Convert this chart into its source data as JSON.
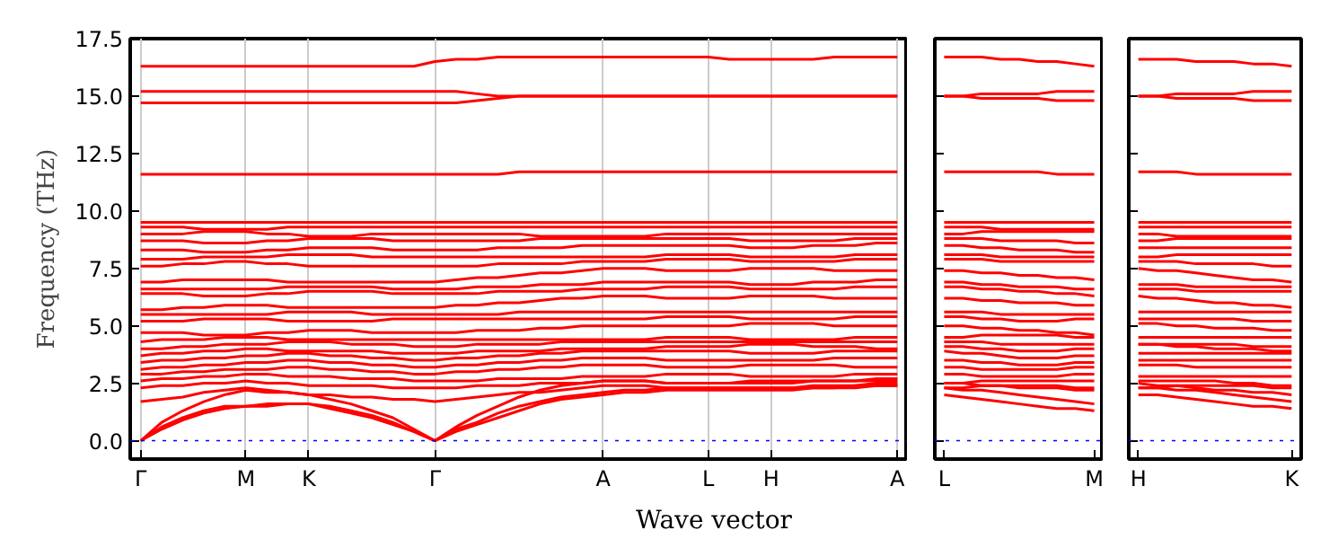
{
  "chart_data": [
    {
      "type": "line",
      "ylabel": "Frequency (THz)",
      "xlabel": "Wave vector",
      "ylim": [
        -0.8,
        17.5
      ],
      "categories": [
        "Γ",
        null,
        null,
        null,
        null,
        "M",
        null,
        null,
        "K",
        null,
        null,
        null,
        null,
        null,
        "Γ",
        null,
        null,
        null,
        null,
        null,
        null,
        null,
        "A",
        null,
        null,
        null,
        null,
        "L",
        null,
        null,
        "H",
        null,
        null,
        null,
        null,
        null,
        "A"
      ],
      "yticks": [
        {
          "value": 0,
          "label": "0.0"
        },
        {
          "value": 2.5,
          "label": "2.5"
        },
        {
          "value": 5,
          "label": "5.0"
        },
        {
          "value": 7.5,
          "label": "7.5"
        },
        {
          "value": 10,
          "label": "10.0"
        },
        {
          "value": 12.5,
          "label": "12.5"
        },
        {
          "value": 15,
          "label": "15.0"
        },
        {
          "value": 17.5,
          "label": "17.5"
        }
      ],
      "grid": "x",
      "ref_lines": [
        {
          "axis": "y",
          "value": 0,
          "color": "#0000ff",
          "line_style": "dotted"
        }
      ],
      "series": [
        {
          "color": "#ff0000",
          "values": [
            0,
            0.5,
            0.9,
            1.2,
            1.4,
            1.5,
            1.5,
            1.6,
            1.6,
            1.4,
            1.2,
            1.0,
            0.7,
            0.4,
            0,
            0.4,
            0.7,
            1.0,
            1.3,
            1.6,
            1.8,
            1.9,
            2.0,
            2.1,
            2.1,
            2.2,
            2.2,
            2.2,
            2.2,
            2.2,
            2.2,
            2.2,
            2.3,
            2.3,
            2.3,
            2.4,
            2.4
          ]
        },
        {
          "color": "#ff0000",
          "values": [
            0,
            0.6,
            1.0,
            1.3,
            1.5,
            1.5,
            1.6,
            1.6,
            1.6,
            1.5,
            1.3,
            1.1,
            0.8,
            0.4,
            0,
            0.5,
            0.8,
            1.2,
            1.5,
            1.7,
            1.9,
            2.0,
            2.1,
            2.2,
            2.2,
            2.3,
            2.3,
            2.3,
            2.3,
            2.3,
            2.3,
            2.3,
            2.4,
            2.4,
            2.4,
            2.5,
            2.5
          ]
        },
        {
          "color": "#ff0000",
          "values": [
            0,
            0.8,
            1.3,
            1.7,
            2.0,
            2.2,
            2.1,
            2.1,
            2.0,
            1.8,
            1.6,
            1.3,
            1.0,
            0.5,
            0,
            0.6,
            1.1,
            1.5,
            1.9,
            2.2,
            2.4,
            2.5,
            2.6,
            2.6,
            2.6,
            2.5,
            2.5,
            2.5,
            2.5,
            2.5,
            2.5,
            2.5,
            2.6,
            2.6,
            2.6,
            2.7,
            2.7
          ]
        },
        {
          "color": "#ff0000",
          "values": [
            1.7,
            1.8,
            1.9,
            2.1,
            2.2,
            2.3,
            2.2,
            2.1,
            2.0,
            2.0,
            1.9,
            1.9,
            1.8,
            1.8,
            1.7,
            1.8,
            1.9,
            2.0,
            2.1,
            2.1,
            2.2,
            2.3,
            2.4,
            2.4,
            2.4,
            2.3,
            2.3,
            2.3,
            2.3,
            2.3,
            2.3,
            2.3,
            2.3,
            2.3,
            2.4,
            2.4,
            2.4
          ]
        },
        {
          "color": "#ff0000",
          "values": [
            2.3,
            2.4,
            2.4,
            2.5,
            2.5,
            2.6,
            2.5,
            2.5,
            2.4,
            2.4,
            2.4,
            2.4,
            2.3,
            2.3,
            2.3,
            2.3,
            2.4,
            2.4,
            2.4,
            2.5,
            2.5,
            2.5,
            2.6,
            2.6,
            2.6,
            2.5,
            2.5,
            2.5,
            2.5,
            2.6,
            2.6,
            2.6,
            2.6,
            2.6,
            2.6,
            2.6,
            2.6
          ]
        },
        {
          "color": "#ff0000",
          "values": [
            2.6,
            2.7,
            2.7,
            2.8,
            2.8,
            2.9,
            2.9,
            2.8,
            2.8,
            2.8,
            2.7,
            2.7,
            2.7,
            2.6,
            2.6,
            2.6,
            2.6,
            2.7,
            2.7,
            2.7,
            2.7,
            2.8,
            2.8,
            2.8,
            2.8,
            2.9,
            2.9,
            2.9,
            2.9,
            2.8,
            2.8,
            2.8,
            2.8,
            2.8,
            2.9,
            2.9,
            2.9
          ]
        },
        {
          "color": "#ff0000",
          "values": [
            2.9,
            2.9,
            3.0,
            3.0,
            3.1,
            3.1,
            3.1,
            3.2,
            3.2,
            3.1,
            3.1,
            3.0,
            3.0,
            2.9,
            2.9,
            3.0,
            3.0,
            3.1,
            3.1,
            3.2,
            3.2,
            3.3,
            3.3,
            3.3,
            3.3,
            3.2,
            3.2,
            3.2,
            3.2,
            3.3,
            3.3,
            3.3,
            3.3,
            3.3,
            3.2,
            3.2,
            3.2
          ]
        },
        {
          "color": "#ff0000",
          "values": [
            3.1,
            3.2,
            3.2,
            3.3,
            3.3,
            3.4,
            3.4,
            3.5,
            3.5,
            3.4,
            3.4,
            3.3,
            3.3,
            3.2,
            3.2,
            3.3,
            3.3,
            3.4,
            3.4,
            3.5,
            3.5,
            3.6,
            3.6,
            3.6,
            3.6,
            3.5,
            3.5,
            3.5,
            3.5,
            3.5,
            3.5,
            3.5,
            3.5,
            3.6,
            3.6,
            3.6,
            3.6
          ]
        },
        {
          "color": "#ff0000",
          "values": [
            3.4,
            3.5,
            3.5,
            3.6,
            3.6,
            3.7,
            3.7,
            3.8,
            3.8,
            3.7,
            3.7,
            3.6,
            3.6,
            3.5,
            3.5,
            3.6,
            3.6,
            3.7,
            3.7,
            3.8,
            3.8,
            3.9,
            3.9,
            3.9,
            3.9,
            3.9,
            3.9,
            3.9,
            3.9,
            3.8,
            3.8,
            3.8,
            3.8,
            3.9,
            3.9,
            3.9,
            3.9
          ]
        },
        {
          "color": "#ff0000",
          "values": [
            3.7,
            3.8,
            3.8,
            3.9,
            3.9,
            4.0,
            4.0,
            3.9,
            3.9,
            3.9,
            3.9,
            3.9,
            3.8,
            3.8,
            3.8,
            3.8,
            3.9,
            3.9,
            3.9,
            3.9,
            4.0,
            4.0,
            4.0,
            4.0,
            4.0,
            4.1,
            4.1,
            4.1,
            4.1,
            4.2,
            4.2,
            4.2,
            4.1,
            4.1,
            4.1,
            4.0,
            4.0
          ]
        },
        {
          "color": "#ff0000",
          "values": [
            4.0,
            4.0,
            4.1,
            4.1,
            4.2,
            4.2,
            4.2,
            4.3,
            4.3,
            4.3,
            4.2,
            4.2,
            4.2,
            4.1,
            4.1,
            4.1,
            4.2,
            4.2,
            4.2,
            4.2,
            4.3,
            4.3,
            4.3,
            4.3,
            4.3,
            4.3,
            4.3,
            4.3,
            4.3,
            4.3,
            4.3,
            4.3,
            4.3,
            4.3,
            4.3,
            4.3,
            4.3
          ]
        },
        {
          "color": "#ff0000",
          "values": [
            4.3,
            4.4,
            4.4,
            4.4,
            4.5,
            4.5,
            4.5,
            4.4,
            4.4,
            4.4,
            4.4,
            4.4,
            4.4,
            4.4,
            4.4,
            4.4,
            4.4,
            4.4,
            4.4,
            4.4,
            4.4,
            4.4,
            4.4,
            4.4,
            4.4,
            4.5,
            4.5,
            4.5,
            4.5,
            4.4,
            4.4,
            4.4,
            4.4,
            4.4,
            4.5,
            4.5,
            4.5
          ]
        },
        {
          "color": "#ff0000",
          "values": [
            4.7,
            4.7,
            4.7,
            4.6,
            4.6,
            4.6,
            4.7,
            4.7,
            4.8,
            4.8,
            4.8,
            4.7,
            4.7,
            4.7,
            4.7,
            4.7,
            4.8,
            4.8,
            4.8,
            4.9,
            4.9,
            5.0,
            5.0,
            5.0,
            5.0,
            5.0,
            5.0,
            5.0,
            5.0,
            5.1,
            5.1,
            5.1,
            5.1,
            5.0,
            5.0,
            5.0,
            5.0
          ]
        },
        {
          "color": "#ff0000",
          "values": [
            5.2,
            5.2,
            5.2,
            5.3,
            5.3,
            5.3,
            5.3,
            5.2,
            5.2,
            5.2,
            5.2,
            5.2,
            5.3,
            5.3,
            5.3,
            5.3,
            5.3,
            5.3,
            5.3,
            5.3,
            5.3,
            5.3,
            5.3,
            5.3,
            5.3,
            5.4,
            5.4,
            5.4,
            5.4,
            5.3,
            5.3,
            5.3,
            5.3,
            5.3,
            5.4,
            5.4,
            5.4
          ]
        },
        {
          "color": "#ff0000",
          "values": [
            5.5,
            5.5,
            5.5,
            5.5,
            5.5,
            5.5,
            5.5,
            5.6,
            5.6,
            5.6,
            5.6,
            5.5,
            5.5,
            5.5,
            5.5,
            5.5,
            5.5,
            5.5,
            5.6,
            5.6,
            5.6,
            5.6,
            5.6,
            5.6,
            5.6,
            5.6,
            5.6,
            5.6,
            5.6,
            5.6,
            5.6,
            5.6,
            5.6,
            5.6,
            5.6,
            5.6,
            5.6
          ]
        },
        {
          "color": "#ff0000",
          "values": [
            5.7,
            5.7,
            5.8,
            5.8,
            5.9,
            5.9,
            5.9,
            5.8,
            5.8,
            5.8,
            5.8,
            5.8,
            5.8,
            5.8,
            5.8,
            5.9,
            5.9,
            6.0,
            6.0,
            6.1,
            6.2,
            6.2,
            6.3,
            6.3,
            6.3,
            6.2,
            6.2,
            6.2,
            6.2,
            6.3,
            6.3,
            6.3,
            6.3,
            6.2,
            6.2,
            6.2,
            6.2
          ]
        },
        {
          "color": "#ff0000",
          "values": [
            6.4,
            6.4,
            6.4,
            6.3,
            6.3,
            6.3,
            6.4,
            6.4,
            6.5,
            6.5,
            6.5,
            6.5,
            6.4,
            6.4,
            6.4,
            6.4,
            6.4,
            6.5,
            6.5,
            6.5,
            6.5,
            6.6,
            6.6,
            6.6,
            6.6,
            6.7,
            6.7,
            6.7,
            6.7,
            6.6,
            6.6,
            6.6,
            6.6,
            6.6,
            6.7,
            6.7,
            6.7
          ]
        },
        {
          "color": "#ff0000",
          "values": [
            6.6,
            6.6,
            6.6,
            6.6,
            6.6,
            6.6,
            6.6,
            6.7,
            6.7,
            6.7,
            6.7,
            6.7,
            6.6,
            6.6,
            6.6,
            6.6,
            6.7,
            6.7,
            6.7,
            6.8,
            6.8,
            6.8,
            6.9,
            6.9,
            6.9,
            6.9,
            6.9,
            6.9,
            6.9,
            6.8,
            6.8,
            6.8,
            6.9,
            6.9,
            6.9,
            7.0,
            7.0
          ]
        },
        {
          "color": "#ff0000",
          "values": [
            6.9,
            6.9,
            7.0,
            7.0,
            7.0,
            7.0,
            7.0,
            6.9,
            6.9,
            6.9,
            6.9,
            6.9,
            6.9,
            6.9,
            6.9,
            7.0,
            7.1,
            7.1,
            7.2,
            7.3,
            7.3,
            7.4,
            7.5,
            7.5,
            7.5,
            7.4,
            7.4,
            7.4,
            7.4,
            7.5,
            7.5,
            7.5,
            7.5,
            7.4,
            7.4,
            7.4,
            7.4
          ]
        },
        {
          "color": "#ff0000",
          "values": [
            7.6,
            7.6,
            7.7,
            7.7,
            7.8,
            7.8,
            7.7,
            7.7,
            7.6,
            7.6,
            7.6,
            7.6,
            7.6,
            7.6,
            7.6,
            7.6,
            7.6,
            7.7,
            7.7,
            7.7,
            7.7,
            7.8,
            7.8,
            7.8,
            7.8,
            7.9,
            7.9,
            7.9,
            7.9,
            7.8,
            7.8,
            7.8,
            7.8,
            7.8,
            7.9,
            7.9,
            7.9
          ]
        },
        {
          "color": "#ff0000",
          "values": [
            7.9,
            7.9,
            7.9,
            8.0,
            8.0,
            8.0,
            8.0,
            8.1,
            8.1,
            8.1,
            8.1,
            8.0,
            8.0,
            8.0,
            8.0,
            8.0,
            8.0,
            8.0,
            8.0,
            8.0,
            8.0,
            8.0,
            8.0,
            8.0,
            8.0,
            8.1,
            8.1,
            8.1,
            8.1,
            8.0,
            8.0,
            8.0,
            8.0,
            8.0,
            8.1,
            8.1,
            8.1
          ]
        },
        {
          "color": "#ff0000",
          "values": [
            8.3,
            8.3,
            8.3,
            8.2,
            8.2,
            8.2,
            8.3,
            8.3,
            8.4,
            8.4,
            8.4,
            8.4,
            8.3,
            8.3,
            8.3,
            8.3,
            8.3,
            8.4,
            8.4,
            8.4,
            8.4,
            8.5,
            8.5,
            8.5,
            8.5,
            8.5,
            8.5,
            8.5,
            8.5,
            8.4,
            8.4,
            8.4,
            8.5,
            8.5,
            8.5,
            8.6,
            8.6
          ]
        },
        {
          "color": "#ff0000",
          "values": [
            8.7,
            8.7,
            8.7,
            8.6,
            8.6,
            8.6,
            8.7,
            8.7,
            8.8,
            8.8,
            8.8,
            8.8,
            8.7,
            8.7,
            8.7,
            8.7,
            8.7,
            8.7,
            8.7,
            8.8,
            8.8,
            8.8,
            8.8,
            8.8,
            8.8,
            8.8,
            8.8,
            8.8,
            8.8,
            8.7,
            8.7,
            8.7,
            8.7,
            8.7,
            8.8,
            8.8,
            8.8
          ]
        },
        {
          "color": "#ff0000",
          "values": [
            9.0,
            9.0,
            9.0,
            9.1,
            9.1,
            9.1,
            9.0,
            9.0,
            8.9,
            8.9,
            8.9,
            9.0,
            9.0,
            9.0,
            9.0,
            9.0,
            9.0,
            9.0,
            9.0,
            8.9,
            8.9,
            8.9,
            8.9,
            8.9,
            8.9,
            9.0,
            9.0,
            9.0,
            9.0,
            9.0,
            9.0,
            9.0,
            9.0,
            9.0,
            9.0,
            9.0,
            9.0
          ]
        },
        {
          "color": "#ff0000",
          "values": [
            9.3,
            9.3,
            9.3,
            9.2,
            9.2,
            9.2,
            9.2,
            9.3,
            9.3,
            9.3,
            9.3,
            9.3,
            9.3,
            9.3,
            9.3,
            9.3,
            9.3,
            9.3,
            9.3,
            9.3,
            9.3,
            9.3,
            9.3,
            9.3,
            9.3,
            9.3,
            9.3,
            9.3,
            9.3,
            9.3,
            9.3,
            9.3,
            9.3,
            9.3,
            9.3,
            9.3,
            9.3
          ]
        },
        {
          "color": "#ff0000",
          "values": [
            9.5,
            9.5,
            9.5,
            9.5,
            9.5,
            9.5,
            9.5,
            9.5,
            9.5,
            9.5,
            9.5,
            9.5,
            9.5,
            9.5,
            9.5,
            9.5,
            9.5,
            9.5,
            9.5,
            9.5,
            9.5,
            9.5,
            9.5,
            9.5,
            9.5,
            9.5,
            9.5,
            9.5,
            9.5,
            9.5,
            9.5,
            9.5,
            9.5,
            9.5,
            9.5,
            9.5,
            9.5
          ]
        },
        {
          "color": "#ff0000",
          "values": [
            11.6,
            11.6,
            11.6,
            11.6,
            11.6,
            11.6,
            11.6,
            11.6,
            11.6,
            11.6,
            11.6,
            11.6,
            11.6,
            11.6,
            11.6,
            11.6,
            11.6,
            11.6,
            11.7,
            11.7,
            11.7,
            11.7,
            11.7,
            11.7,
            11.7,
            11.7,
            11.7,
            11.7,
            11.7,
            11.7,
            11.7,
            11.7,
            11.7,
            11.7,
            11.7,
            11.7,
            11.7
          ]
        },
        {
          "color": "#ff0000",
          "values": [
            14.7,
            14.7,
            14.7,
            14.7,
            14.7,
            14.7,
            14.7,
            14.7,
            14.7,
            14.7,
            14.7,
            14.7,
            14.7,
            14.7,
            14.7,
            14.7,
            14.8,
            14.9,
            15.0,
            15.0,
            15.0,
            15.0,
            15.0,
            15.0,
            15.0,
            15.0,
            15.0,
            15.0,
            15.0,
            15.0,
            15.0,
            15.0,
            15.0,
            15.0,
            15.0,
            15.0,
            15.0
          ]
        },
        {
          "color": "#ff0000",
          "values": [
            15.2,
            15.2,
            15.2,
            15.2,
            15.2,
            15.2,
            15.2,
            15.2,
            15.2,
            15.2,
            15.2,
            15.2,
            15.2,
            15.2,
            15.2,
            15.2,
            15.1,
            15.0,
            15.0,
            15.0,
            15.0,
            15.0,
            15.0,
            15.0,
            15.0,
            15.0,
            15.0,
            15.0,
            15.0,
            15.0,
            15.0,
            15.0,
            15.0,
            15.0,
            15.0,
            15.0,
            15.0
          ]
        },
        {
          "color": "#ff0000",
          "values": [
            16.3,
            16.3,
            16.3,
            16.3,
            16.3,
            16.3,
            16.3,
            16.3,
            16.3,
            16.3,
            16.3,
            16.3,
            16.3,
            16.3,
            16.5,
            16.6,
            16.6,
            16.7,
            16.7,
            16.7,
            16.7,
            16.7,
            16.7,
            16.7,
            16.7,
            16.7,
            16.7,
            16.7,
            16.6,
            16.6,
            16.6,
            16.6,
            16.6,
            16.7,
            16.7,
            16.7,
            16.7
          ]
        }
      ]
    },
    {
      "type": "line",
      "ylim": [
        -0.8,
        17.5
      ],
      "tick_labels": "x",
      "categories": [
        "L",
        null,
        null,
        null,
        null,
        null,
        null,
        null,
        "M"
      ],
      "yticks": [
        0,
        2.5,
        5,
        7.5,
        10,
        12.5,
        15,
        17.5
      ],
      "ref_lines": [
        {
          "axis": "y",
          "value": 0,
          "color": "#0000ff",
          "line_style": "dotted"
        }
      ],
      "series": [
        {
          "color": "#ff0000",
          "values": [
            2.0,
            1.9,
            1.8,
            1.7,
            1.6,
            1.5,
            1.4,
            1.4,
            1.3
          ]
        },
        {
          "color": "#ff0000",
          "values": [
            2.3,
            2.2,
            2.2,
            2.1,
            2.0,
            1.9,
            1.8,
            1.7,
            1.6
          ]
        },
        {
          "color": "#ff0000",
          "values": [
            2.5,
            2.5,
            2.4,
            2.4,
            2.3,
            2.3,
            2.3,
            2.2,
            2.2
          ]
        },
        {
          "color": "#ff0000",
          "values": [
            2.3,
            2.3,
            2.4,
            2.4,
            2.4,
            2.4,
            2.4,
            2.3,
            2.3
          ]
        },
        {
          "color": "#ff0000",
          "values": [
            2.5,
            2.5,
            2.6,
            2.6,
            2.6,
            2.6,
            2.6,
            2.6,
            2.6
          ]
        },
        {
          "color": "#ff0000",
          "values": [
            2.9,
            2.9,
            2.8,
            2.8,
            2.8,
            2.8,
            2.8,
            2.9,
            2.9
          ]
        },
        {
          "color": "#ff0000",
          "values": [
            3.2,
            3.2,
            3.1,
            3.1,
            3.1,
            3.1,
            3.1,
            3.2,
            3.2
          ]
        },
        {
          "color": "#ff0000",
          "values": [
            3.5,
            3.5,
            3.4,
            3.4,
            3.3,
            3.3,
            3.3,
            3.4,
            3.4
          ]
        },
        {
          "color": "#ff0000",
          "values": [
            3.9,
            3.8,
            3.8,
            3.7,
            3.6,
            3.6,
            3.6,
            3.7,
            3.7
          ]
        },
        {
          "color": "#ff0000",
          "values": [
            4.1,
            4.1,
            4.0,
            4.0,
            3.9,
            3.9,
            3.9,
            4.0,
            4.0
          ]
        },
        {
          "color": "#ff0000",
          "values": [
            4.3,
            4.3,
            4.3,
            4.2,
            4.2,
            4.2,
            4.2,
            4.2,
            4.2
          ]
        },
        {
          "color": "#ff0000",
          "values": [
            4.5,
            4.5,
            4.6,
            4.6,
            4.6,
            4.6,
            4.6,
            4.5,
            4.5
          ]
        },
        {
          "color": "#ff0000",
          "values": [
            5.0,
            5.0,
            4.9,
            4.9,
            4.8,
            4.8,
            4.7,
            4.7,
            4.6
          ]
        },
        {
          "color": "#ff0000",
          "values": [
            5.4,
            5.4,
            5.3,
            5.3,
            5.2,
            5.2,
            5.2,
            5.3,
            5.3
          ]
        },
        {
          "color": "#ff0000",
          "values": [
            5.6,
            5.6,
            5.6,
            5.5,
            5.5,
            5.5,
            5.5,
            5.5,
            5.5
          ]
        },
        {
          "color": "#ff0000",
          "values": [
            6.2,
            6.2,
            6.1,
            6.1,
            6.0,
            6.0,
            6.0,
            5.9,
            5.9
          ]
        },
        {
          "color": "#ff0000",
          "values": [
            6.7,
            6.7,
            6.6,
            6.6,
            6.5,
            6.5,
            6.4,
            6.4,
            6.3
          ]
        },
        {
          "color": "#ff0000",
          "values": [
            6.9,
            6.9,
            6.8,
            6.8,
            6.7,
            6.7,
            6.7,
            6.6,
            6.6
          ]
        },
        {
          "color": "#ff0000",
          "values": [
            7.4,
            7.4,
            7.3,
            7.3,
            7.2,
            7.2,
            7.1,
            7.1,
            7.0
          ]
        },
        {
          "color": "#ff0000",
          "values": [
            7.9,
            7.9,
            7.9,
            7.8,
            7.8,
            7.8,
            7.8,
            7.8,
            7.8
          ]
        },
        {
          "color": "#ff0000",
          "values": [
            8.1,
            8.1,
            8.1,
            8.0,
            8.0,
            8.0,
            8.0,
            8.0,
            8.0
          ]
        },
        {
          "color": "#ff0000",
          "values": [
            8.5,
            8.5,
            8.4,
            8.4,
            8.3,
            8.3,
            8.3,
            8.2,
            8.2
          ]
        },
        {
          "color": "#ff0000",
          "values": [
            8.8,
            8.8,
            8.8,
            8.7,
            8.7,
            8.7,
            8.7,
            8.6,
            8.6
          ]
        },
        {
          "color": "#ff0000",
          "values": [
            9.0,
            9.0,
            9.1,
            9.1,
            9.1,
            9.1,
            9.1,
            9.1,
            9.1
          ]
        },
        {
          "color": "#ff0000",
          "values": [
            9.3,
            9.3,
            9.3,
            9.2,
            9.2,
            9.2,
            9.2,
            9.2,
            9.2
          ]
        },
        {
          "color": "#ff0000",
          "values": [
            9.5,
            9.5,
            9.5,
            9.5,
            9.5,
            9.5,
            9.5,
            9.5,
            9.5
          ]
        },
        {
          "color": "#ff0000",
          "values": [
            11.7,
            11.7,
            11.7,
            11.7,
            11.7,
            11.7,
            11.6,
            11.6,
            11.6
          ]
        },
        {
          "color": "#ff0000",
          "values": [
            15.0,
            15.0,
            14.9,
            14.9,
            14.9,
            14.9,
            14.8,
            14.8,
            14.8
          ]
        },
        {
          "color": "#ff0000",
          "values": [
            15.0,
            15.0,
            15.1,
            15.1,
            15.1,
            15.1,
            15.2,
            15.2,
            15.2
          ]
        },
        {
          "color": "#ff0000",
          "values": [
            16.7,
            16.7,
            16.7,
            16.6,
            16.6,
            16.5,
            16.5,
            16.4,
            16.3
          ]
        }
      ]
    },
    {
      "type": "line",
      "ylim": [
        -0.8,
        17.5
      ],
      "tick_labels": "x",
      "categories": [
        "H",
        null,
        null,
        null,
        null,
        null,
        null,
        null,
        "K"
      ],
      "yticks": [
        0,
        2.5,
        5,
        7.5,
        10,
        12.5,
        15,
        17.5
      ],
      "ref_lines": [
        {
          "axis": "y",
          "value": 0,
          "color": "#0000ff",
          "line_style": "dotted"
        }
      ],
      "series": [
        {
          "color": "#ff0000",
          "values": [
            2.0,
            2.0,
            1.9,
            1.8,
            1.7,
            1.6,
            1.5,
            1.5,
            1.4
          ]
        },
        {
          "color": "#ff0000",
          "values": [
            2.3,
            2.3,
            2.2,
            2.2,
            2.1,
            2.0,
            1.9,
            1.8,
            1.7
          ]
        },
        {
          "color": "#ff0000",
          "values": [
            2.5,
            2.4,
            2.4,
            2.3,
            2.2,
            2.2,
            2.1,
            2.1,
            2.0
          ]
        },
        {
          "color": "#ff0000",
          "values": [
            2.3,
            2.3,
            2.4,
            2.4,
            2.4,
            2.4,
            2.4,
            2.3,
            2.3
          ]
        },
        {
          "color": "#ff0000",
          "values": [
            2.6,
            2.6,
            2.6,
            2.6,
            2.6,
            2.5,
            2.5,
            2.4,
            2.4
          ]
        },
        {
          "color": "#ff0000",
          "values": [
            2.8,
            2.8,
            2.8,
            2.8,
            2.8,
            2.8,
            2.8,
            2.8,
            2.8
          ]
        },
        {
          "color": "#ff0000",
          "values": [
            3.3,
            3.3,
            3.3,
            3.2,
            3.2,
            3.2,
            3.2,
            3.2,
            3.2
          ]
        },
        {
          "color": "#ff0000",
          "values": [
            3.5,
            3.5,
            3.5,
            3.5,
            3.5,
            3.5,
            3.5,
            3.5,
            3.5
          ]
        },
        {
          "color": "#ff0000",
          "values": [
            3.8,
            3.8,
            3.8,
            3.8,
            3.8,
            3.8,
            3.8,
            3.8,
            3.8
          ]
        },
        {
          "color": "#ff0000",
          "values": [
            4.2,
            4.2,
            4.1,
            4.1,
            4.0,
            4.0,
            4.0,
            3.9,
            3.9
          ]
        },
        {
          "color": "#ff0000",
          "values": [
            4.2,
            4.2,
            4.2,
            4.2,
            4.2,
            4.2,
            4.1,
            4.1,
            4.1
          ]
        },
        {
          "color": "#ff0000",
          "values": [
            4.5,
            4.5,
            4.5,
            4.5,
            4.5,
            4.5,
            4.5,
            4.5,
            4.5
          ]
        },
        {
          "color": "#ff0000",
          "values": [
            5.1,
            5.1,
            5.0,
            5.0,
            4.9,
            4.9,
            4.9,
            4.8,
            4.8
          ]
        },
        {
          "color": "#ff0000",
          "values": [
            5.3,
            5.3,
            5.3,
            5.3,
            5.3,
            5.3,
            5.2,
            5.2,
            5.2
          ]
        },
        {
          "color": "#ff0000",
          "values": [
            5.6,
            5.6,
            5.6,
            5.6,
            5.6,
            5.6,
            5.6,
            5.6,
            5.6
          ]
        },
        {
          "color": "#ff0000",
          "values": [
            6.3,
            6.2,
            6.2,
            6.1,
            6.0,
            6.0,
            5.9,
            5.9,
            5.8
          ]
        },
        {
          "color": "#ff0000",
          "values": [
            6.6,
            6.6,
            6.6,
            6.5,
            6.5,
            6.5,
            6.5,
            6.5,
            6.5
          ]
        },
        {
          "color": "#ff0000",
          "values": [
            6.8,
            6.8,
            6.8,
            6.7,
            6.7,
            6.7,
            6.7,
            6.7,
            6.7
          ]
        },
        {
          "color": "#ff0000",
          "values": [
            7.5,
            7.4,
            7.4,
            7.3,
            7.2,
            7.1,
            7.0,
            7.0,
            6.9
          ]
        },
        {
          "color": "#ff0000",
          "values": [
            7.8,
            7.8,
            7.8,
            7.7,
            7.7,
            7.7,
            7.7,
            7.6,
            7.6
          ]
        },
        {
          "color": "#ff0000",
          "values": [
            8.0,
            8.0,
            8.1,
            8.1,
            8.1,
            8.1,
            8.1,
            8.1,
            8.1
          ]
        },
        {
          "color": "#ff0000",
          "values": [
            8.4,
            8.4,
            8.4,
            8.4,
            8.4,
            8.4,
            8.4,
            8.4,
            8.4
          ]
        },
        {
          "color": "#ff0000",
          "values": [
            8.7,
            8.7,
            8.8,
            8.8,
            8.8,
            8.8,
            8.8,
            8.8,
            8.8
          ]
        },
        {
          "color": "#ff0000",
          "values": [
            9.0,
            9.0,
            8.9,
            8.9,
            8.9,
            8.9,
            8.9,
            8.9,
            8.9
          ]
        },
        {
          "color": "#ff0000",
          "values": [
            9.3,
            9.3,
            9.3,
            9.3,
            9.3,
            9.3,
            9.3,
            9.3,
            9.3
          ]
        },
        {
          "color": "#ff0000",
          "values": [
            9.5,
            9.5,
            9.5,
            9.5,
            9.5,
            9.5,
            9.5,
            9.5,
            9.5
          ]
        },
        {
          "color": "#ff0000",
          "values": [
            11.7,
            11.7,
            11.7,
            11.6,
            11.6,
            11.6,
            11.6,
            11.6,
            11.6
          ]
        },
        {
          "color": "#ff0000",
          "values": [
            15.0,
            15.0,
            14.9,
            14.9,
            14.9,
            14.9,
            14.8,
            14.8,
            14.8
          ]
        },
        {
          "color": "#ff0000",
          "values": [
            15.0,
            15.0,
            15.1,
            15.1,
            15.1,
            15.1,
            15.2,
            15.2,
            15.2
          ]
        },
        {
          "color": "#ff0000",
          "values": [
            16.6,
            16.6,
            16.6,
            16.5,
            16.5,
            16.5,
            16.4,
            16.4,
            16.3
          ]
        }
      ]
    }
  ]
}
